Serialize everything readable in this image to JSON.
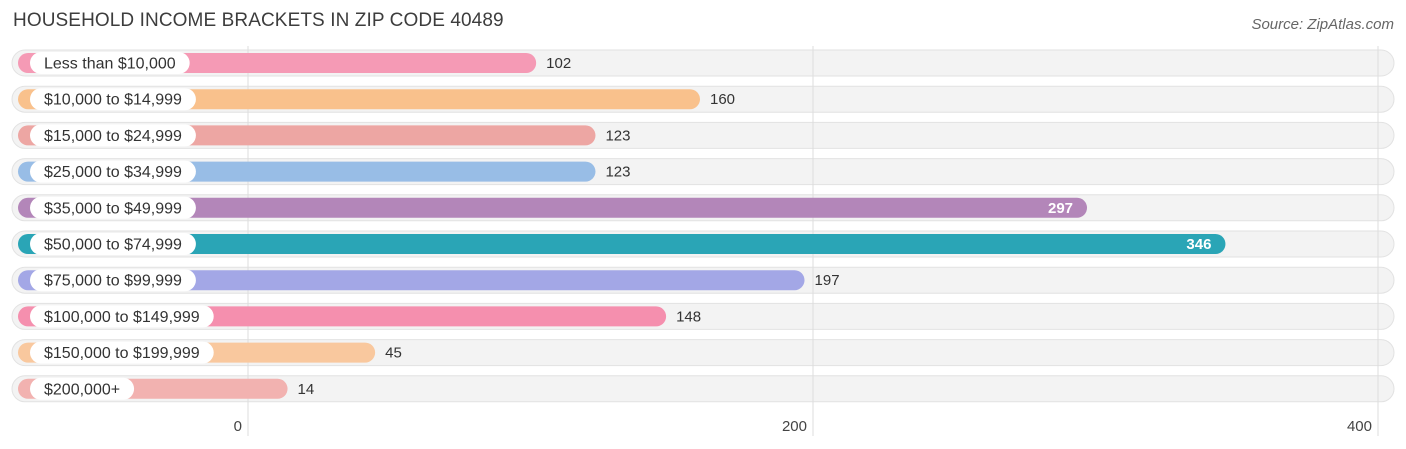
{
  "title": "HOUSEHOLD INCOME BRACKETS IN ZIP CODE 40489",
  "source": "Source: ZipAtlas.com",
  "chart_data": {
    "type": "bar",
    "orientation": "horizontal",
    "categories": [
      "Less than $10,000",
      "$10,000 to $14,999",
      "$15,000 to $24,999",
      "$25,000 to $34,999",
      "$35,000 to $49,999",
      "$50,000 to $74,999",
      "$75,000 to $99,999",
      "$100,000 to $149,999",
      "$150,000 to $199,999",
      "$200,000+"
    ],
    "values": [
      102,
      160,
      123,
      123,
      297,
      346,
      197,
      148,
      45,
      14
    ],
    "colors": [
      "#f59ab5",
      "#f9c18c",
      "#eda6a3",
      "#98bde6",
      "#b386b9",
      "#2aa5b6",
      "#a3a7e6",
      "#f58fae",
      "#f9c89e",
      "#f2b2b0"
    ],
    "highlighted": "$50,000 to $74,999",
    "xticks": [
      0,
      200,
      400
    ],
    "xlim": [
      0,
      400
    ],
    "grid": true
  }
}
